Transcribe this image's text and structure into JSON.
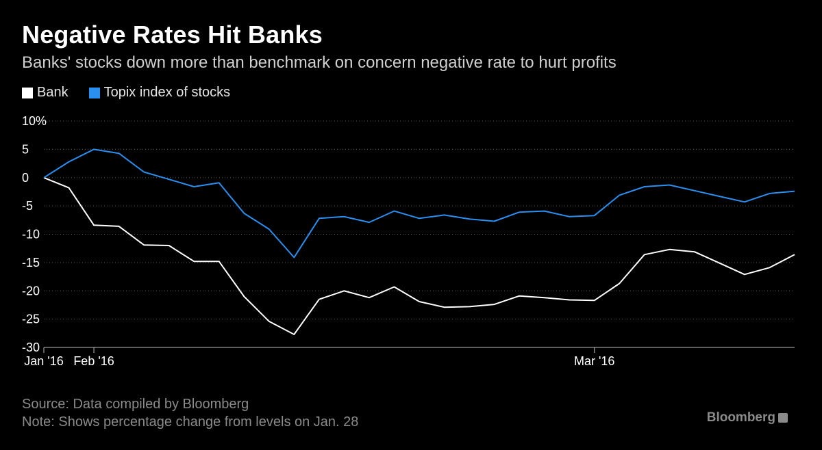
{
  "title": "Negative Rates Hit Banks",
  "subtitle": "Banks' stocks down more than benchmark on concern negative rate to hurt profits",
  "source": "Source: Data compiled by Bloomberg",
  "note": "Note: Shows percentage change from levels on Jan. 28",
  "brand": "Bloomberg",
  "chart_data": {
    "type": "line",
    "x": [
      "2016-01-28",
      "2016-01-29",
      "2016-02-01",
      "2016-02-02",
      "2016-02-03",
      "2016-02-04",
      "2016-02-05",
      "2016-02-08",
      "2016-02-09",
      "2016-02-10",
      "2016-02-12",
      "2016-02-15",
      "2016-02-16",
      "2016-02-17",
      "2016-02-18",
      "2016-02-19",
      "2016-02-22",
      "2016-02-23",
      "2016-02-24",
      "2016-02-25",
      "2016-02-26",
      "2016-02-29",
      "2016-03-01",
      "2016-03-02",
      "2016-03-03",
      "2016-03-04",
      "2016-03-07",
      "2016-03-08",
      "2016-03-09",
      "2016-03-10",
      "2016-03-11"
    ],
    "x_index": [
      0,
      1,
      2,
      3,
      4,
      5,
      6,
      7,
      8,
      9,
      10,
      11,
      12,
      13,
      14,
      15,
      16,
      17,
      18,
      19,
      20,
      21,
      22,
      23,
      24,
      25,
      26,
      27,
      28,
      29,
      30
    ],
    "series": [
      {
        "name": "Bank",
        "color": "#ffffff",
        "values": [
          0,
          -1.8,
          -8.4,
          -8.6,
          -11.9,
          -12.0,
          -14.8,
          -14.8,
          -21.0,
          -25.4,
          -27.7,
          -21.5,
          -20.0,
          -21.2,
          -19.3,
          -21.9,
          -22.9,
          -22.8,
          -22.4,
          -20.9,
          -21.2,
          -21.6,
          -21.7,
          -18.7,
          -13.6,
          -12.7,
          -13.1,
          -15.1,
          -17.1,
          -15.9,
          -13.6
        ]
      },
      {
        "name": "Topix index of stocks",
        "color": "#2b8ff0",
        "values": [
          0,
          2.8,
          5.0,
          4.3,
          1.0,
          -0.3,
          -1.6,
          -0.9,
          -6.3,
          -9.1,
          -14.1,
          -7.2,
          -6.9,
          -7.9,
          -5.9,
          -7.2,
          -6.6,
          -7.3,
          -7.7,
          -6.1,
          -5.9,
          -6.9,
          -6.7,
          -3.1,
          -1.6,
          -1.3,
          -2.3,
          -3.3,
          -4.3,
          -2.8,
          -2.4
        ]
      }
    ],
    "x_ticks": [
      {
        "label": "Jan '16",
        "index": 0
      },
      {
        "label": "Feb '16",
        "index": 2
      },
      {
        "label": "Mar '16",
        "index": 22
      }
    ],
    "y_ticks": [
      {
        "value": 10,
        "label": "10%"
      },
      {
        "value": 5,
        "label": "5"
      },
      {
        "value": 0,
        "label": "0"
      },
      {
        "value": -5,
        "label": "-5"
      },
      {
        "value": -10,
        "label": "-10"
      },
      {
        "value": -15,
        "label": "-15"
      },
      {
        "value": -20,
        "label": "-20"
      },
      {
        "value": -25,
        "label": "-25"
      },
      {
        "value": -30,
        "label": "-30"
      }
    ],
    "ylim": [
      -30,
      10
    ],
    "grid": true,
    "legend": "top-left"
  }
}
